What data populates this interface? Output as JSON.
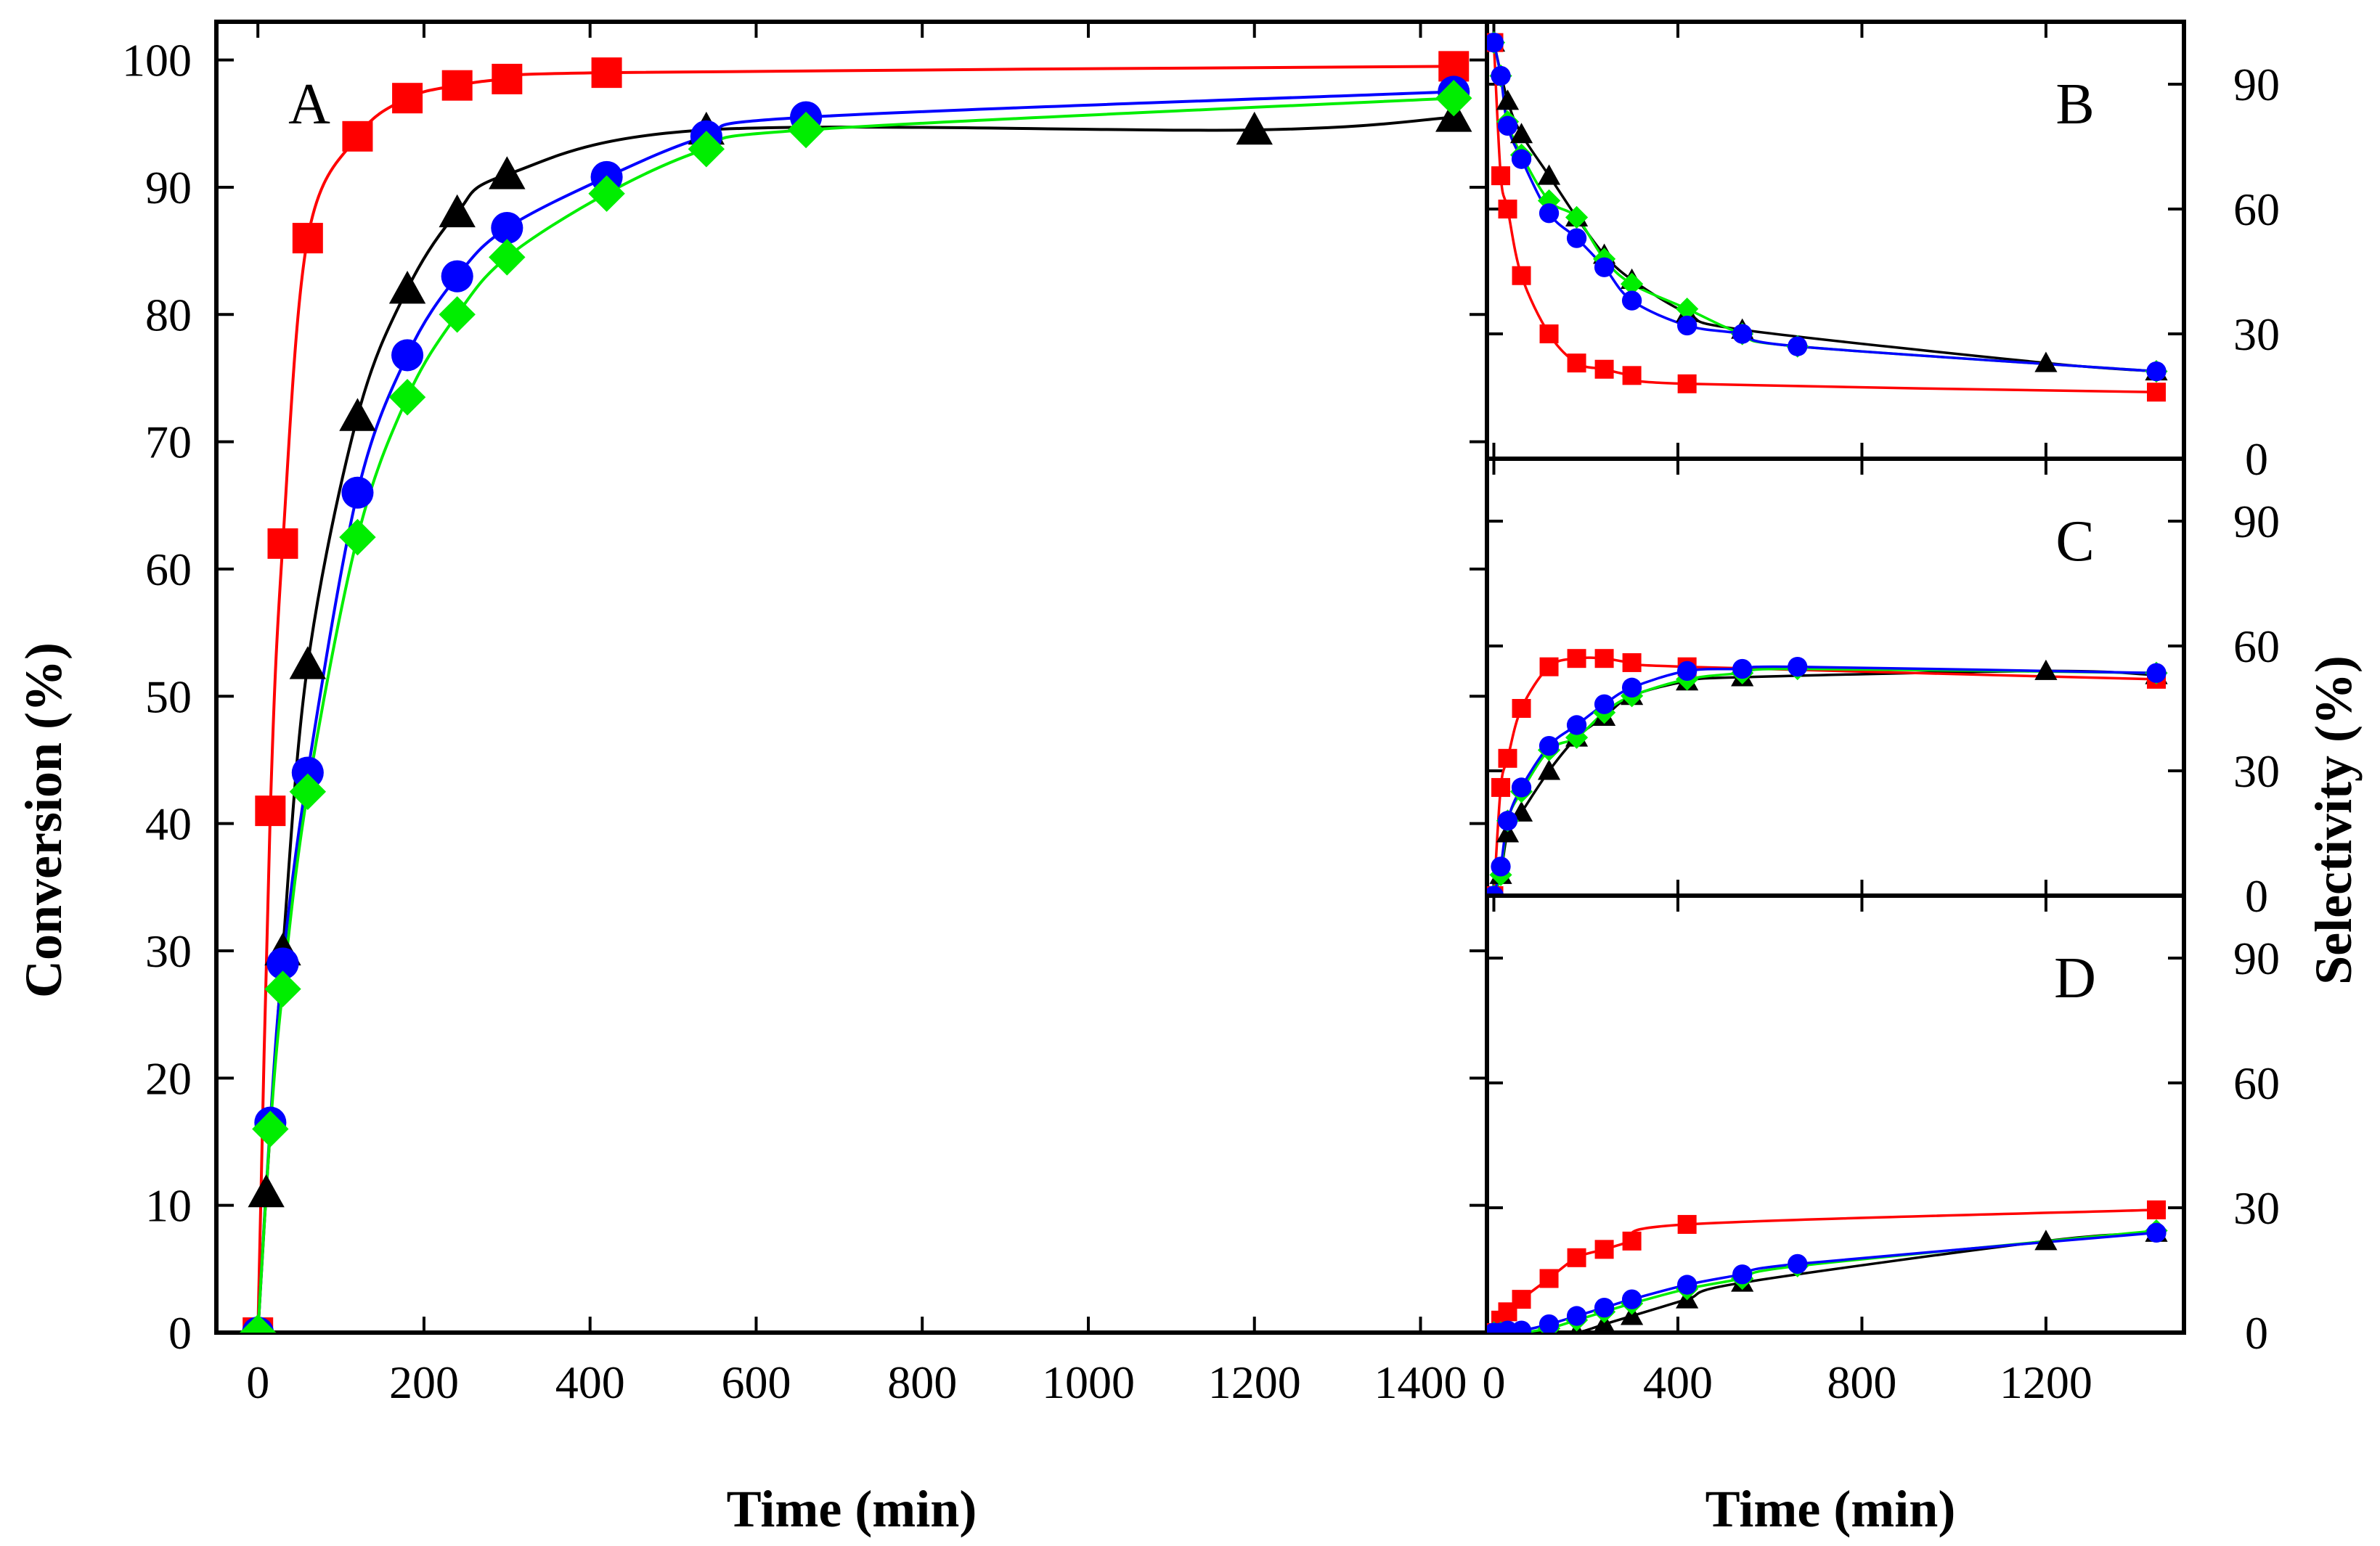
{
  "chart_data": [
    {
      "panel": "A",
      "type": "line",
      "xlabel": "Time (min)",
      "ylabel": "Conversion (%)",
      "xlim": [
        -50,
        1480
      ],
      "ylim": [
        0,
        103
      ],
      "x_ticks": [
        0,
        200,
        400,
        600,
        800,
        1000,
        1200,
        1400
      ],
      "x_tick_labels": [
        "0",
        "200",
        "400",
        "600",
        "800",
        "1000",
        "1200",
        "1400"
      ],
      "y_ticks": [
        0,
        10,
        20,
        30,
        40,
        50,
        60,
        70,
        80,
        90,
        100
      ],
      "y_tick_labels": [
        "0",
        "10",
        "20",
        "30",
        "40",
        "50",
        "60",
        "70",
        "80",
        "90",
        "100"
      ],
      "series": [
        {
          "name": "black-triangles",
          "color": "#000000",
          "marker": "triangle",
          "x": [
            0,
            10,
            30,
            60,
            120,
            180,
            240,
            300,
            540,
            1200,
            1440
          ],
          "y": [
            0,
            11,
            30,
            52.5,
            72,
            82,
            88,
            91,
            94.5,
            94.5,
            95.5
          ]
        },
        {
          "name": "red-squares",
          "color": "#ff0000",
          "marker": "square",
          "x": [
            0,
            15,
            30,
            60,
            120,
            180,
            240,
            300,
            420,
            1440
          ],
          "y": [
            0,
            41,
            62,
            86,
            94,
            97,
            98,
            98.5,
            99,
            99.5
          ]
        },
        {
          "name": "blue-circles",
          "color": "#0000ff",
          "marker": "circle",
          "x": [
            0,
            15,
            30,
            60,
            120,
            180,
            240,
            300,
            420,
            540,
            660,
            1440
          ],
          "y": [
            0,
            16.5,
            29,
            44,
            66,
            76.8,
            83,
            86.8,
            90.8,
            94,
            95.5,
            97.5
          ]
        },
        {
          "name": "green-diamonds",
          "color": "#00ee00",
          "marker": "diamond",
          "x": [
            0,
            15,
            30,
            60,
            120,
            180,
            240,
            300,
            420,
            540,
            660,
            1440
          ],
          "y": [
            0,
            16,
            27,
            42.5,
            62.5,
            73.5,
            80,
            84.5,
            89.5,
            93,
            94.5,
            97
          ]
        }
      ]
    },
    {
      "panel": "B",
      "type": "line",
      "xlabel": "Time (min)",
      "ylabel": "Selectivity (%)",
      "xlim": [
        -15,
        1500
      ],
      "ylim": [
        0,
        105
      ],
      "y_ticks": [
        0,
        30,
        60,
        90
      ],
      "y_tick_labels": [
        "0",
        "30",
        "60",
        "90"
      ],
      "series": [
        {
          "name": "black-triangles",
          "color": "#000000",
          "marker": "triangle",
          "x": [
            0,
            30,
            60,
            120,
            180,
            240,
            300,
            420,
            540,
            1200,
            1440
          ],
          "y": [
            100,
            86,
            78,
            68,
            58,
            49,
            43,
            35,
            31,
            23,
            21
          ]
        },
        {
          "name": "red-squares",
          "color": "#ff0000",
          "marker": "square",
          "x": [
            0,
            15,
            30,
            60,
            120,
            180,
            240,
            300,
            420,
            1440
          ],
          "y": [
            100,
            68,
            60,
            44,
            30,
            23,
            21.5,
            20,
            18,
            16
          ]
        },
        {
          "name": "green-diamonds",
          "color": "#00ee00",
          "marker": "diamond",
          "x": [
            0,
            15,
            30,
            60,
            120,
            180,
            240,
            300,
            420,
            540,
            660,
            1440
          ],
          "y": [
            100,
            92,
            81,
            73,
            62,
            58,
            48,
            42,
            36,
            30,
            27,
            21
          ]
        },
        {
          "name": "blue-circles",
          "color": "#0000ff",
          "marker": "circle",
          "x": [
            0,
            15,
            30,
            60,
            120,
            180,
            240,
            300,
            420,
            540,
            660,
            1440
          ],
          "y": [
            100,
            92,
            80,
            72,
            59,
            53,
            46,
            38,
            32,
            30,
            27,
            21
          ]
        }
      ]
    },
    {
      "panel": "C",
      "type": "line",
      "xlim": [
        -15,
        1500
      ],
      "ylim": [
        0,
        105
      ],
      "y_ticks": [
        0,
        30,
        60,
        90
      ],
      "y_tick_labels": [
        "0",
        "30",
        "60",
        "90"
      ],
      "series": [
        {
          "name": "black-triangles",
          "color": "#000000",
          "marker": "triangle",
          "x": [
            0,
            15,
            30,
            60,
            120,
            180,
            240,
            300,
            420,
            540,
            1200,
            1440
          ],
          "y": [
            0,
            5,
            15,
            20,
            30,
            38,
            43,
            48,
            51.5,
            52.5,
            54,
            53
          ]
        },
        {
          "name": "red-squares",
          "color": "#ff0000",
          "marker": "square",
          "x": [
            0,
            15,
            30,
            60,
            120,
            180,
            240,
            300,
            420,
            1440
          ],
          "y": [
            0,
            26,
            33,
            45,
            55,
            57,
            57,
            56,
            55,
            52
          ]
        },
        {
          "name": "green-diamonds",
          "color": "#00ee00",
          "marker": "diamond",
          "x": [
            0,
            15,
            30,
            60,
            120,
            180,
            240,
            300,
            420,
            540,
            660,
            1440
          ],
          "y": [
            0,
            5,
            18,
            25,
            35,
            38,
            44,
            48,
            52,
            53.5,
            54.5,
            53.5
          ]
        },
        {
          "name": "blue-circles",
          "color": "#0000ff",
          "marker": "circle",
          "x": [
            0,
            15,
            30,
            60,
            120,
            180,
            240,
            300,
            420,
            540,
            660,
            1440
          ],
          "y": [
            0,
            7,
            18,
            26,
            36,
            41,
            46,
            50,
            54,
            54.5,
            55,
            53.5
          ]
        }
      ]
    },
    {
      "panel": "D",
      "type": "line",
      "xlabel": "Time (min)",
      "xlim": [
        -15,
        1500
      ],
      "ylim": [
        0,
        105
      ],
      "x_ticks": [
        0,
        400,
        800,
        1200
      ],
      "x_tick_labels": [
        "0",
        "400",
        "800",
        "1200"
      ],
      "y_ticks": [
        0,
        30,
        60,
        90
      ],
      "y_tick_labels": [
        "0",
        "30",
        "60",
        "90"
      ],
      "series": [
        {
          "name": "black-triangles",
          "color": "#000000",
          "marker": "triangle",
          "x": [
            0,
            30,
            60,
            120,
            180,
            240,
            300,
            420,
            540,
            1200,
            1440
          ],
          "y": [
            0,
            0,
            0,
            0,
            0,
            2,
            4,
            8,
            12,
            22,
            24
          ]
        },
        {
          "name": "red-squares",
          "color": "#ff0000",
          "marker": "square",
          "x": [
            0,
            15,
            30,
            60,
            120,
            180,
            240,
            300,
            420,
            1440
          ],
          "y": [
            0,
            3,
            5,
            8,
            13,
            18,
            20,
            22,
            26,
            29.5
          ]
        },
        {
          "name": "green-diamonds",
          "color": "#00ee00",
          "marker": "diamond",
          "x": [
            0,
            15,
            30,
            60,
            120,
            180,
            240,
            300,
            420,
            540,
            660,
            1440
          ],
          "y": [
            0,
            0,
            0,
            0,
            1,
            3,
            5,
            7,
            10.5,
            13,
            16,
            24.5
          ]
        },
        {
          "name": "blue-circles",
          "color": "#0000ff",
          "marker": "circle",
          "x": [
            0,
            15,
            30,
            60,
            120,
            180,
            240,
            300,
            420,
            540,
            660,
            1440
          ],
          "y": [
            0,
            0,
            0.5,
            0.5,
            2,
            4,
            6,
            8,
            11.5,
            14,
            16.5,
            24
          ]
        }
      ]
    }
  ],
  "figure": {
    "left_y_title": "Conversion (%)",
    "right_y_title": "Selectivity (%)",
    "left_x_title": "Time (min)",
    "right_x_title": "Time (min)"
  }
}
